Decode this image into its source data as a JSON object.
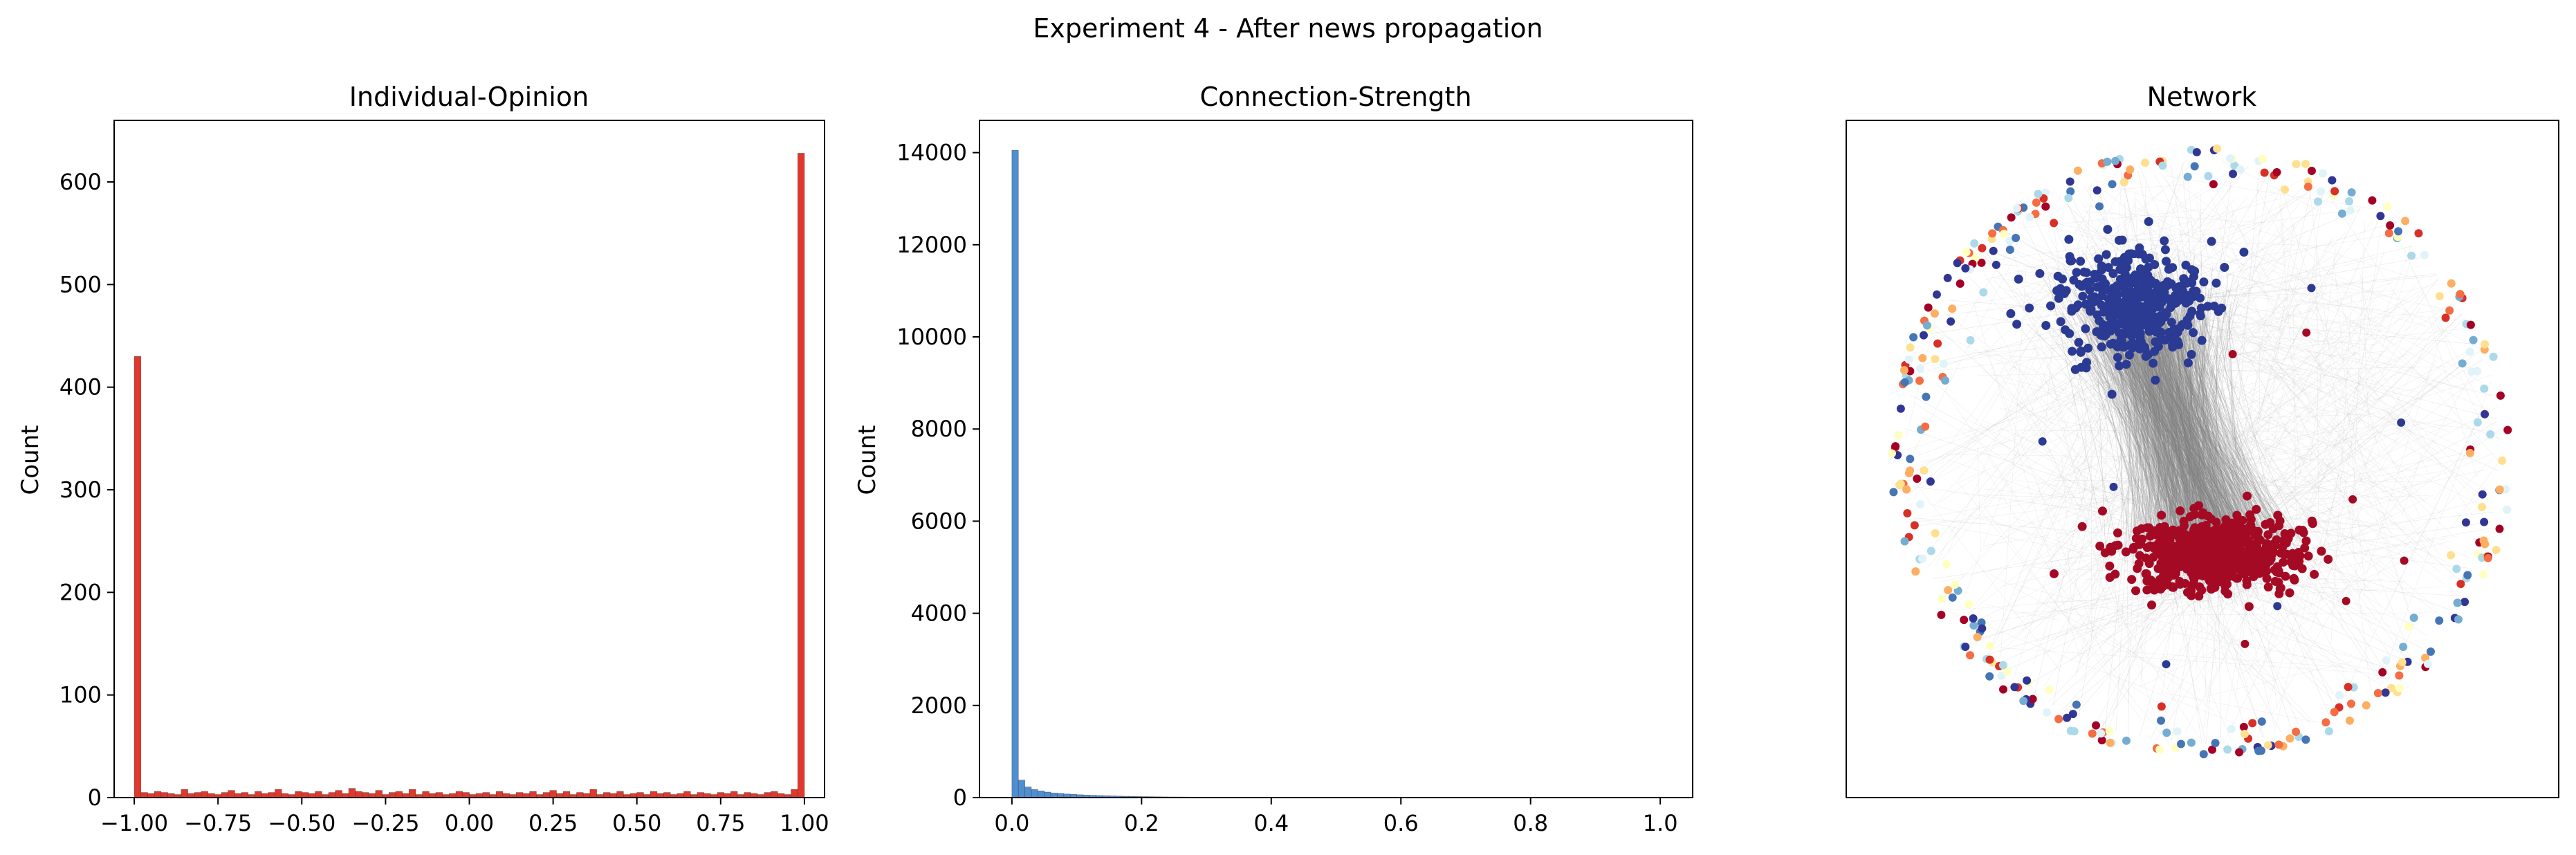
{
  "suptitle": "Experiment 4 - After news propagation",
  "colors": {
    "opinion_bar": "#e0382c",
    "strength_bar": "#4f8fd0",
    "edge": "#808080",
    "cluster_blue": "#2b3a92",
    "cluster_red": "#a50a25"
  },
  "chart_data": [
    {
      "type": "bar",
      "title": "Individual-Opinion",
      "xlabel": "",
      "ylabel": "Count",
      "xlim": [
        -1.06,
        1.06
      ],
      "ylim": [
        0,
        660
      ],
      "xticks": [
        -1.0,
        -0.75,
        -0.5,
        -0.25,
        0.0,
        0.25,
        0.5,
        0.75,
        1.0
      ],
      "xtick_labels": [
        "−1.00",
        "−0.75",
        "−0.50",
        "−0.25",
        "0.00",
        "0.25",
        "0.50",
        "0.75",
        "1.00"
      ],
      "yticks": [
        0,
        100,
        200,
        300,
        400,
        500,
        600
      ],
      "ytick_labels": [
        "0",
        "100",
        "200",
        "300",
        "400",
        "500",
        "600"
      ],
      "bin_edges_range": [
        -1.0,
        1.0
      ],
      "bin_count": 100,
      "values": [
        430,
        5,
        4,
        6,
        5,
        4,
        3,
        8,
        4,
        5,
        6,
        4,
        3,
        5,
        7,
        4,
        5,
        3,
        6,
        4,
        5,
        8,
        4,
        3,
        6,
        5,
        4,
        6,
        3,
        5,
        7,
        4,
        9,
        6,
        5,
        4,
        7,
        3,
        5,
        6,
        4,
        8,
        3,
        6,
        4,
        5,
        3,
        4,
        6,
        5,
        3,
        4,
        5,
        3,
        6,
        4,
        3,
        5,
        4,
        6,
        3,
        5,
        7,
        4,
        6,
        3,
        5,
        4,
        8,
        3,
        5,
        4,
        6,
        3,
        4,
        5,
        3,
        6,
        4,
        5,
        3,
        4,
        6,
        3,
        5,
        4,
        3,
        5,
        4,
        6,
        3,
        5,
        4,
        3,
        5,
        6,
        4,
        3,
        8,
        628
      ],
      "grid": false
    },
    {
      "type": "bar",
      "title": "Connection-Strength",
      "xlabel": "",
      "ylabel": "Count",
      "xlim": [
        -0.05,
        1.05
      ],
      "ylim": [
        0,
        14700
      ],
      "xticks": [
        0.0,
        0.2,
        0.4,
        0.6,
        0.8,
        1.0
      ],
      "xtick_labels": [
        "0.0",
        "0.2",
        "0.4",
        "0.6",
        "0.8",
        "1.0"
      ],
      "yticks": [
        0,
        2000,
        4000,
        6000,
        8000,
        10000,
        12000,
        14000
      ],
      "ytick_labels": [
        "0",
        "2000",
        "4000",
        "6000",
        "8000",
        "10000",
        "12000",
        "14000"
      ],
      "bin_edges_range": [
        0.0,
        1.0
      ],
      "bin_count": 100,
      "values": [
        14050,
        380,
        230,
        175,
        145,
        120,
        100,
        90,
        78,
        70,
        62,
        55,
        50,
        45,
        40,
        36,
        32,
        29,
        26,
        24,
        22,
        20,
        18,
        16,
        15,
        14,
        13,
        12,
        11,
        10,
        9,
        8,
        8,
        7,
        7,
        6,
        6,
        5,
        5,
        5,
        4,
        4,
        4,
        3,
        3,
        3,
        3,
        2,
        2,
        2,
        2,
        2,
        2,
        1,
        1,
        1,
        1,
        1,
        1,
        1,
        1,
        1,
        1,
        1,
        1,
        1,
        0,
        0,
        0,
        0,
        0,
        0,
        0,
        0,
        0,
        0,
        0,
        0,
        0,
        0,
        0,
        0,
        0,
        0,
        0,
        0,
        0,
        0,
        0,
        0,
        0,
        0,
        0,
        0,
        0,
        0,
        0,
        0,
        0,
        0
      ],
      "grid": false
    },
    {
      "type": "scatter",
      "title": "Network",
      "xlabel": "",
      "ylabel": "",
      "description": "network graph",
      "axes_ticks": false
    }
  ]
}
